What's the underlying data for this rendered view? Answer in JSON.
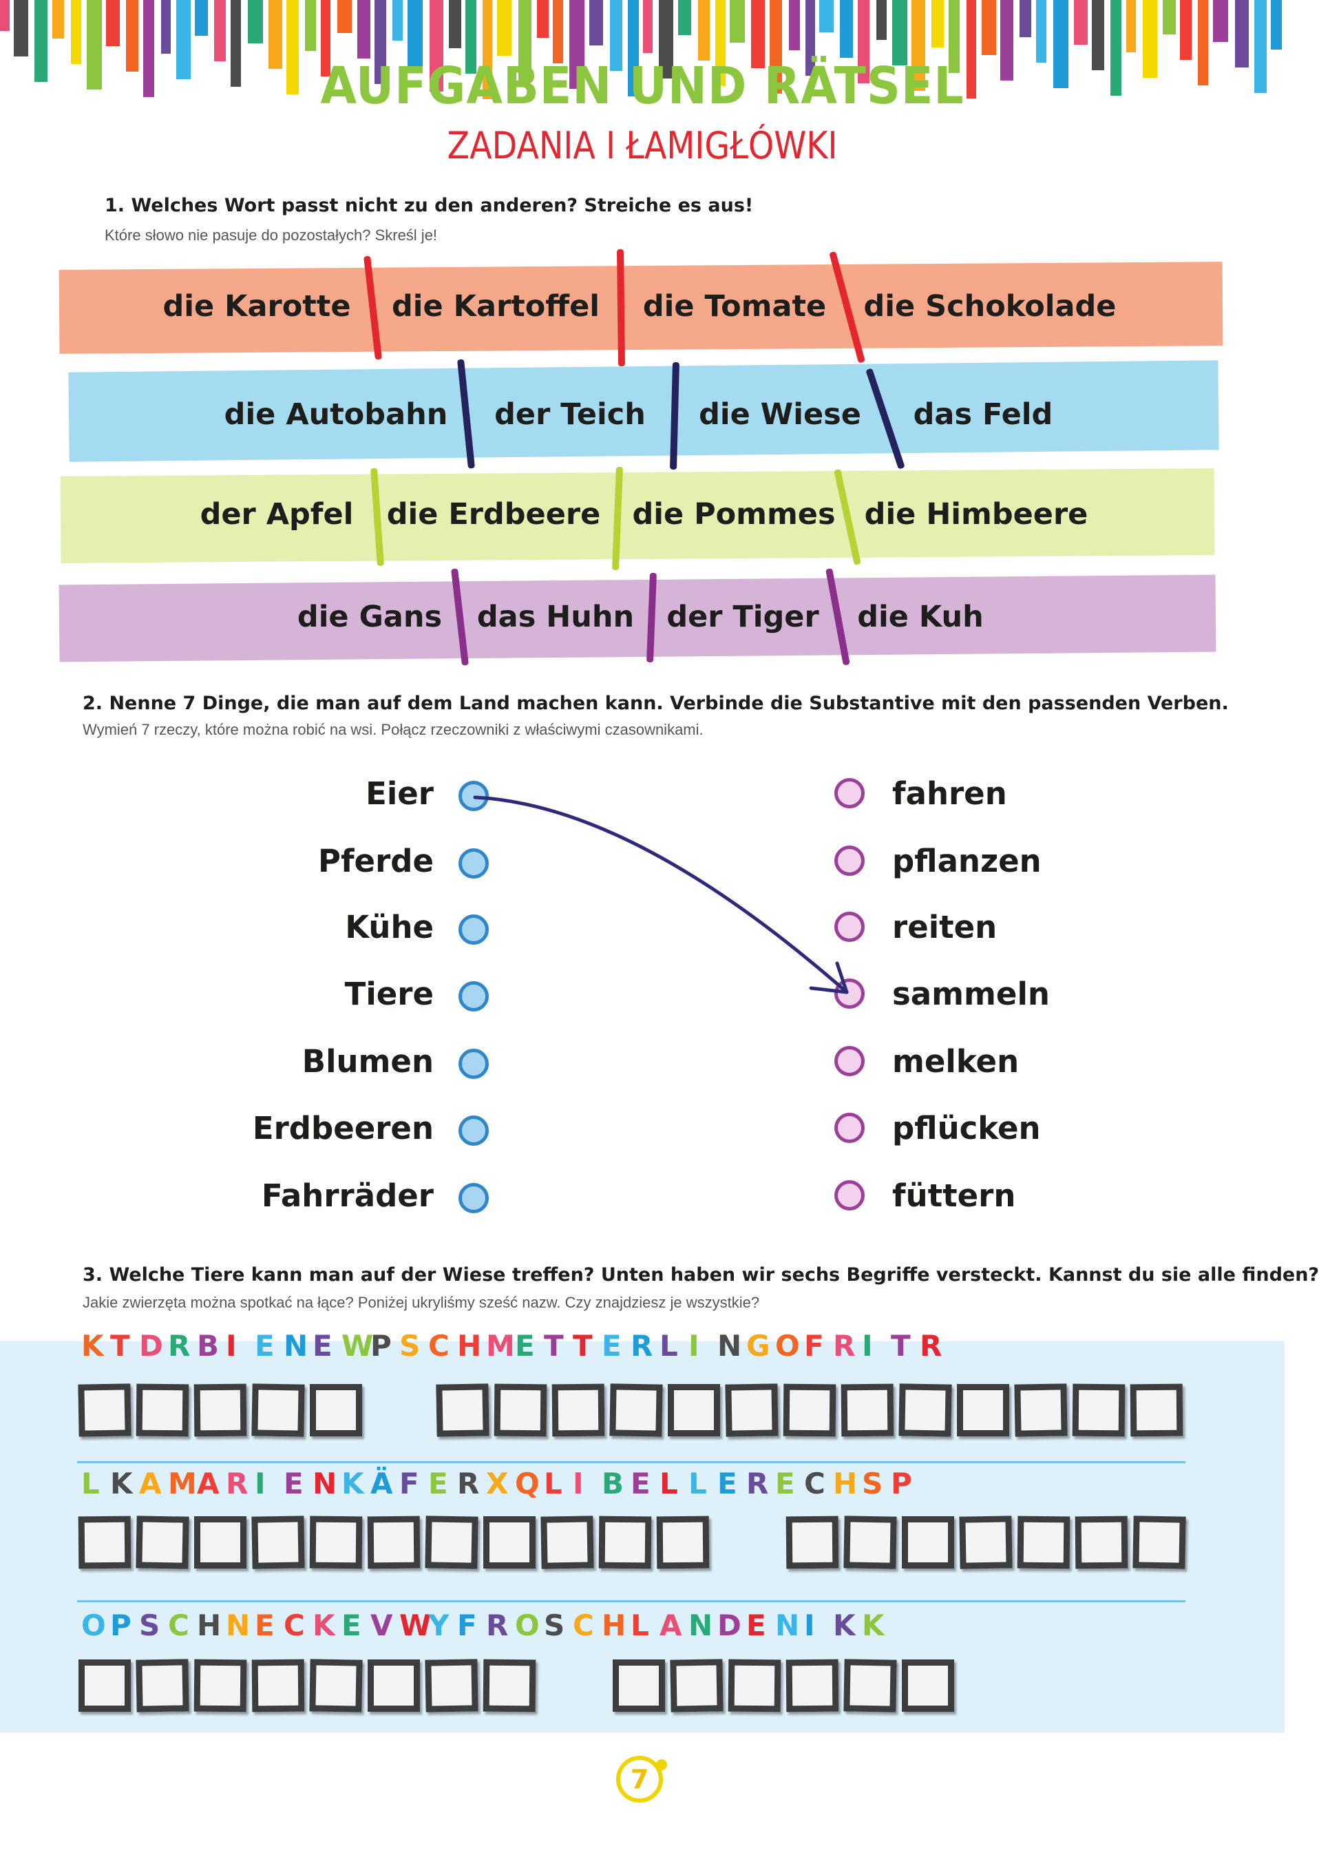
{
  "title": {
    "de": "AUFGABEN UND RÄTSEL",
    "pl": "ZADANIA I ŁAMIGŁÓWKI"
  },
  "colors": {
    "title_green": "#8cc63f",
    "title_red": "#e3262f",
    "band_orange": "#f5a88a",
    "band_blue": "#a4dbf1",
    "band_lime": "#e4f0b0",
    "band_purple": "#d6b4d8",
    "sep_red": "#e3262f",
    "sep_navy": "#24235e",
    "sep_lime": "#b5d335",
    "sep_purple": "#8b2f8c",
    "arrow": "#2e2a7a",
    "stripes": [
      "#e94e77",
      "#8cc63f",
      "#3ab5e6",
      "#f7a81b",
      "#9c3f98",
      "#4d4d4d",
      "#ef3e36",
      "#1f9bd7",
      "#f5d800",
      "#6b4c9a",
      "#2aa876",
      "#f26522"
    ]
  },
  "task1": {
    "question_de": "1. Welches Wort passt nicht zu den anderen? Streiche es aus!",
    "question_pl": "Które słowo nie pasuje do pozostałych? Skreśl je!",
    "rows": [
      {
        "words": [
          "die Karotte",
          "die Kartoffel",
          "die Tomate",
          "die Schokolade"
        ]
      },
      {
        "words": [
          "die Autobahn",
          "der Teich",
          "die Wiese",
          "das Feld"
        ]
      },
      {
        "words": [
          "der Apfel",
          "die Erdbeere",
          "die Pommes",
          "die Himbeere"
        ]
      },
      {
        "words": [
          "die Gans",
          "das Huhn",
          "der Tiger",
          "die Kuh"
        ]
      }
    ]
  },
  "task2": {
    "question_de": "2. Nenne 7 Dinge, die man auf dem Land machen kann. Verbinde die Substantive mit den passenden Verben.",
    "question_pl": "Wymień 7 rzeczy, które można robić na wsi. Połącz rzeczowniki z właściwymi czasownikami.",
    "nouns": [
      "Eier",
      "Pferde",
      "Kühe",
      "Tiere",
      "Blumen",
      "Erdbeeren",
      "Fahrräder"
    ],
    "verbs": [
      "fahren",
      "pflanzen",
      "reiten",
      "sammeln",
      "melken",
      "pflücken",
      "füttern"
    ],
    "example_connection": {
      "from": "Eier",
      "to": "sammeln"
    }
  },
  "task3": {
    "question_de": "3. Welche Tiere kann man auf der Wiese treffen? Unten haben wir sechs Begriffe versteckt. Kannst du sie alle finden?",
    "question_pl": "Jakie zwierzęta można spotkać na łące? Poniżej ukryliśmy sześć nazw. Czy znajdziesz je wszystkie?",
    "rows": [
      {
        "letters": [
          "K",
          "T",
          "D",
          "R",
          "B",
          "I",
          "E",
          "N",
          "E",
          "W",
          "P",
          "S",
          "C",
          "H",
          "M",
          "E",
          "T",
          "T",
          "E",
          "R",
          "L",
          "I",
          "N",
          "G",
          "O",
          "F",
          "R",
          "I",
          "T",
          "R"
        ],
        "box_groups": [
          5,
          13
        ]
      },
      {
        "letters": [
          "L",
          "K",
          "A",
          "M",
          "A",
          "R",
          "I",
          "E",
          "N",
          "K",
          "Ä",
          "F",
          "E",
          "R",
          "X",
          "Q",
          "L",
          "I",
          "B",
          "E",
          "L",
          "L",
          "E",
          "R",
          "E",
          "C",
          "H",
          "S",
          "P"
        ],
        "box_groups": [
          11,
          7
        ]
      },
      {
        "letters": [
          "O",
          "P",
          "S",
          "C",
          "H",
          "N",
          "E",
          "C",
          "K",
          "E",
          "V",
          "W",
          "Y",
          "F",
          "R",
          "O",
          "S",
          "C",
          "H",
          "L",
          "A",
          "N",
          "D",
          "E",
          "N",
          "I",
          "K",
          "K"
        ],
        "box_groups": [
          8,
          6
        ]
      }
    ],
    "letter_colors": [
      "#f26522",
      "#1f9bd7",
      "#e94e77",
      "#8cc63f",
      "#9c3f98",
      "#f7a81b",
      "#3ab5e6",
      "#ef3e36",
      "#6b4c9a",
      "#2aa876",
      "#4d4d4d",
      "#e3262f"
    ]
  },
  "page_number": "7"
}
